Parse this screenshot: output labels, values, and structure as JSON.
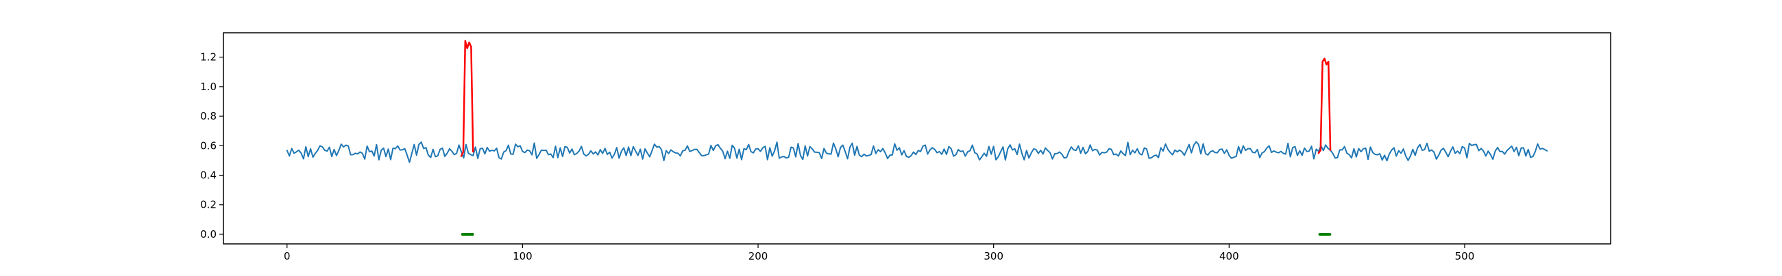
{
  "chart_data": {
    "type": "line",
    "title": "",
    "xlabel": "",
    "ylabel": "",
    "xlim": [
      -27,
      562
    ],
    "ylim": [
      -0.065,
      1.365
    ],
    "grid": false,
    "legend": "none",
    "x_ticks": [
      0,
      100,
      200,
      300,
      400,
      500
    ],
    "y_ticks": [
      0.0,
      0.2,
      0.4,
      0.6,
      0.8,
      1.0,
      1.2
    ],
    "x_tick_labels": [
      "0",
      "100",
      "200",
      "300",
      "400",
      "500"
    ],
    "y_tick_labels": [
      "0.0",
      "0.2",
      "0.4",
      "0.6",
      "0.8",
      "1.0",
      "1.2"
    ],
    "n_points": 536,
    "series": [
      {
        "color": "#1f77b4",
        "y_generator": "noise",
        "baseline": 0.56,
        "amplitude": 0.035
      }
    ],
    "anomalies": [
      {
        "start": 74,
        "end": 79,
        "values": [
          0.53,
          0.56,
          1.31,
          1.26,
          1.3,
          1.27,
          0.56
        ],
        "color": "#ff0000",
        "marker_color": "#008000",
        "marker_y": 0.0
      },
      {
        "start": 438,
        "end": 443,
        "values": [
          0.55,
          0.57,
          1.17,
          1.19,
          1.15,
          1.17,
          0.57
        ],
        "color": "#ff0000",
        "marker_color": "#008000",
        "marker_y": 0.0
      }
    ]
  }
}
